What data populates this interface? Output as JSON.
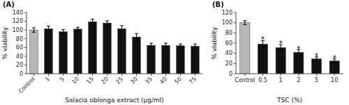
{
  "chart_data": [
    {
      "type": "bar",
      "title": "(A)",
      "categories": [
        "Control",
        "1",
        "5",
        "10",
        "15",
        "20",
        "25",
        "30",
        "35",
        "40",
        "50",
        "75"
      ],
      "values": [
        100,
        103,
        96,
        102,
        119,
        116,
        103,
        84,
        65,
        65,
        64,
        63
      ],
      "errors": [
        5,
        6,
        5,
        4,
        6,
        5,
        7,
        8,
        5,
        5,
        4,
        5
      ],
      "colors": [
        "#b8b8b8",
        "#111111",
        "#111111",
        "#111111",
        "#111111",
        "#111111",
        "#111111",
        "#111111",
        "#111111",
        "#111111",
        "#111111",
        "#111111"
      ],
      "xlabel": "Salacia oblonga extract (μg/ml)",
      "ylabel": "% viability",
      "ylim": [
        0,
        140
      ],
      "yticks": [
        0,
        20,
        40,
        60,
        80,
        100,
        120,
        140
      ],
      "grid": false
    },
    {
      "type": "bar",
      "title": "(B)",
      "categories": [
        "Control",
        "0.5",
        "1",
        "2",
        "5",
        "10"
      ],
      "values": [
        100,
        58,
        51,
        42,
        29,
        25
      ],
      "errors": [
        4,
        7,
        6,
        5,
        4,
        4
      ],
      "colors": [
        "#b8b8b8",
        "#111111",
        "#111111",
        "#111111",
        "#111111",
        "#111111"
      ],
      "xlabel": "TSC (%)",
      "ylabel": "% viability",
      "ylim": [
        0,
        120
      ],
      "yticks": [
        0,
        20,
        40,
        60,
        80,
        100,
        120
      ],
      "annotations": [
        {
          "text": "*",
          "category": "0.5"
        },
        {
          "text": "*",
          "category": "1"
        },
        {
          "text": "*",
          "category": "2"
        },
        {
          "text": "*",
          "category": "5"
        },
        {
          "text": "*",
          "category": "10"
        }
      ],
      "grid": false
    }
  ]
}
